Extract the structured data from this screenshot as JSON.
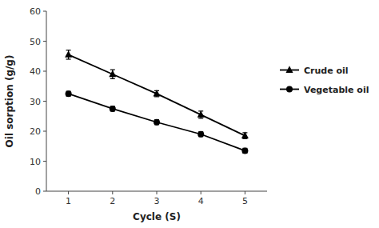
{
  "chart_data": {
    "type": "line",
    "x": [
      1,
      2,
      3,
      4,
      5
    ],
    "xlabel": "Cycle (S)",
    "ylabel": "Oil sorption (g/g)",
    "xlim": [
      0.5,
      5.5
    ],
    "ylim": [
      0,
      60
    ],
    "xticks": [
      1,
      2,
      3,
      4,
      5
    ],
    "yticks": [
      0,
      10,
      20,
      30,
      40,
      50,
      60
    ],
    "grid": false,
    "legend": "right",
    "series": [
      {
        "name": "Crude oil",
        "color": "#000000",
        "marker": "triangle",
        "values": [
          45.5,
          39.0,
          32.5,
          25.5,
          18.5
        ],
        "errors": [
          1.5,
          1.5,
          1.0,
          1.2,
          1.0
        ]
      },
      {
        "name": "Vegetable oil",
        "color": "#000000",
        "marker": "circle",
        "values": [
          32.5,
          27.5,
          23.0,
          19.0,
          13.5
        ],
        "errors": [
          0.8,
          0.8,
          0.8,
          0.8,
          0.8
        ]
      }
    ]
  }
}
